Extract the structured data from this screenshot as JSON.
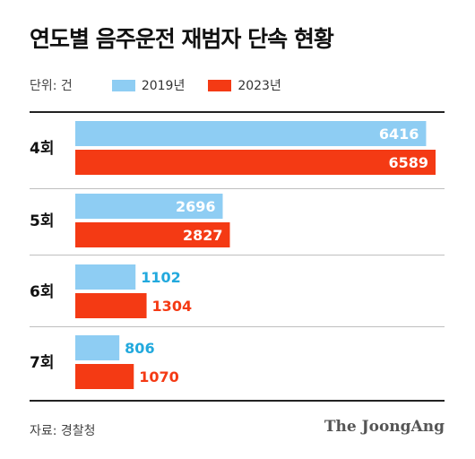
{
  "chart_data": {
    "type": "bar",
    "orientation": "horizontal",
    "title": "연도별 음주운전 재범자 단속 현황",
    "unit_label": "단위: 건",
    "categories": [
      "4회",
      "5회",
      "6회",
      "7회"
    ],
    "series": [
      {
        "name": "2019년",
        "color": "#8ecdf3",
        "label_color": "#22a9dd",
        "values": [
          6416,
          2696,
          1102,
          806
        ]
      },
      {
        "name": "2023년",
        "color": "#f43a14",
        "label_color": "#f43a14",
        "values": [
          6589,
          2827,
          1304,
          1070
        ]
      }
    ],
    "xlim": [
      0,
      6589
    ],
    "grid": false,
    "legend_position": "top-left"
  },
  "footer": {
    "source": "자료: 경찰청",
    "brand": "The JoongAng"
  }
}
